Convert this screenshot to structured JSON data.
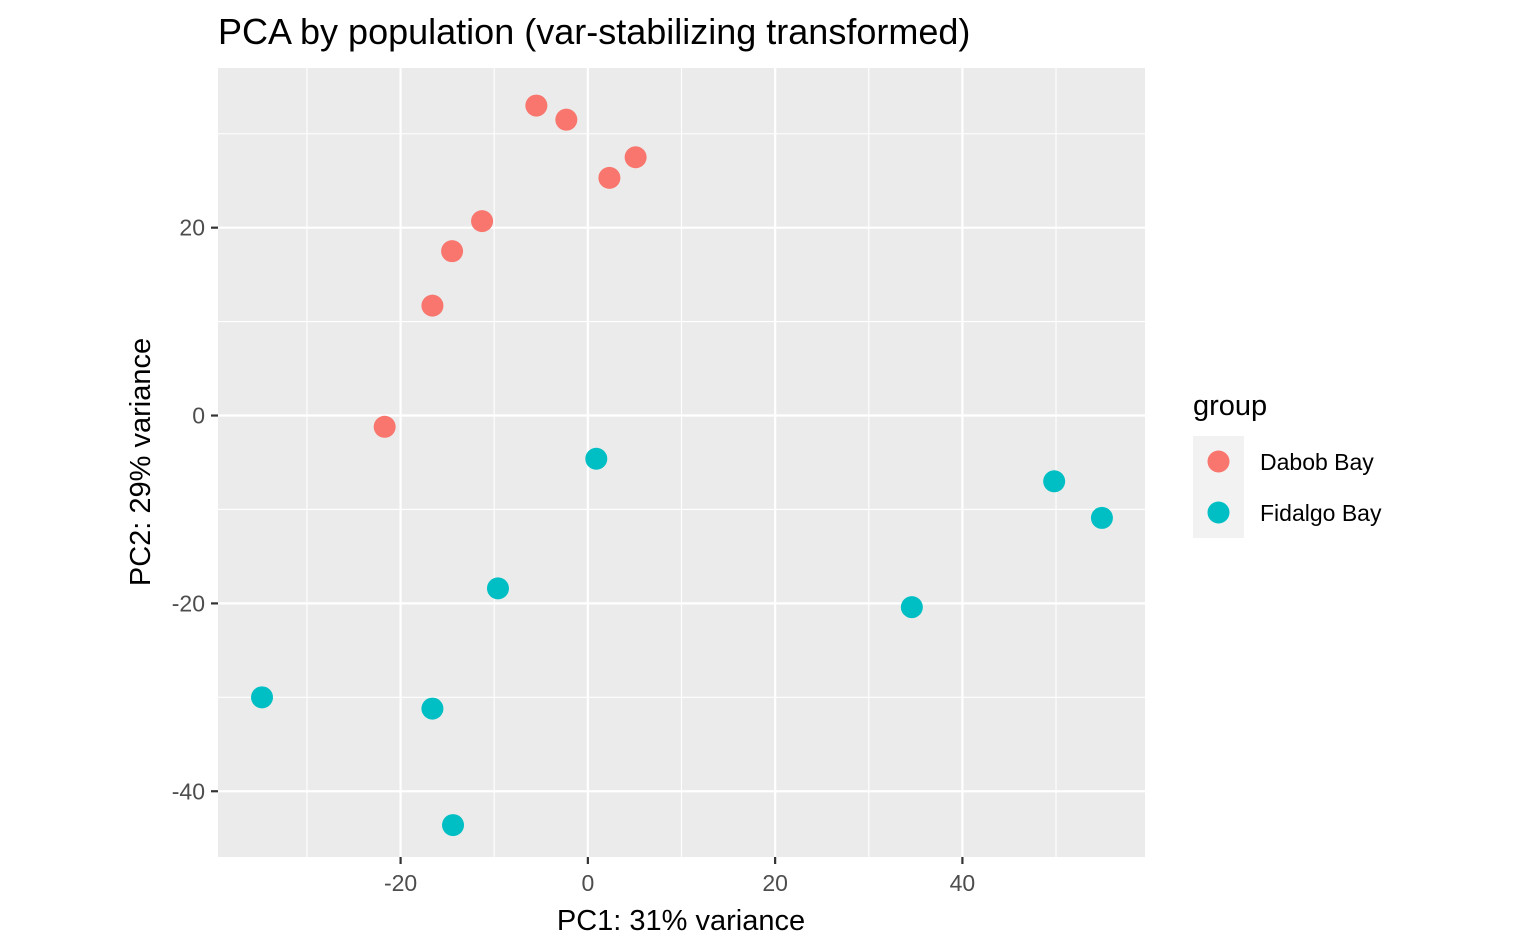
{
  "chart_data": {
    "type": "scatter",
    "title": "PCA by population (var-stabilizing transformed)",
    "xlabel": "PC1: 31% variance",
    "ylabel": "PC2: 29% variance",
    "xlim": [
      -39.5,
      59.5
    ],
    "ylim": [
      -47,
      37
    ],
    "x_ticks": [
      -20,
      0,
      20,
      40
    ],
    "y_ticks": [
      -40,
      -20,
      0,
      20
    ],
    "x_tick_labels": [
      "-20",
      "0",
      "20",
      "40"
    ],
    "y_tick_labels": [
      "-40",
      "-20",
      "0",
      "20"
    ],
    "grid": true,
    "legend_position": "right",
    "legend_title": "group",
    "series": [
      {
        "name": "Dabob Bay",
        "color": "#F8766D",
        "points": [
          {
            "x": -5.5,
            "y": 33.0
          },
          {
            "x": -2.3,
            "y": 31.5
          },
          {
            "x": 5.1,
            "y": 27.5
          },
          {
            "x": 2.3,
            "y": 25.3
          },
          {
            "x": -11.3,
            "y": 20.7
          },
          {
            "x": -14.5,
            "y": 17.5
          },
          {
            "x": -16.6,
            "y": 11.7
          },
          {
            "x": -21.7,
            "y": -1.2
          }
        ]
      },
      {
        "name": "Fidalgo Bay",
        "color": "#00BFC4",
        "points": [
          {
            "x": 0.9,
            "y": -4.6
          },
          {
            "x": 49.8,
            "y": -7.0
          },
          {
            "x": 54.9,
            "y": -10.9
          },
          {
            "x": 34.6,
            "y": -20.4
          },
          {
            "x": -9.6,
            "y": -18.4
          },
          {
            "x": -34.8,
            "y": -30.0
          },
          {
            "x": -16.6,
            "y": -31.2
          },
          {
            "x": -14.4,
            "y": -43.6
          }
        ]
      }
    ]
  }
}
